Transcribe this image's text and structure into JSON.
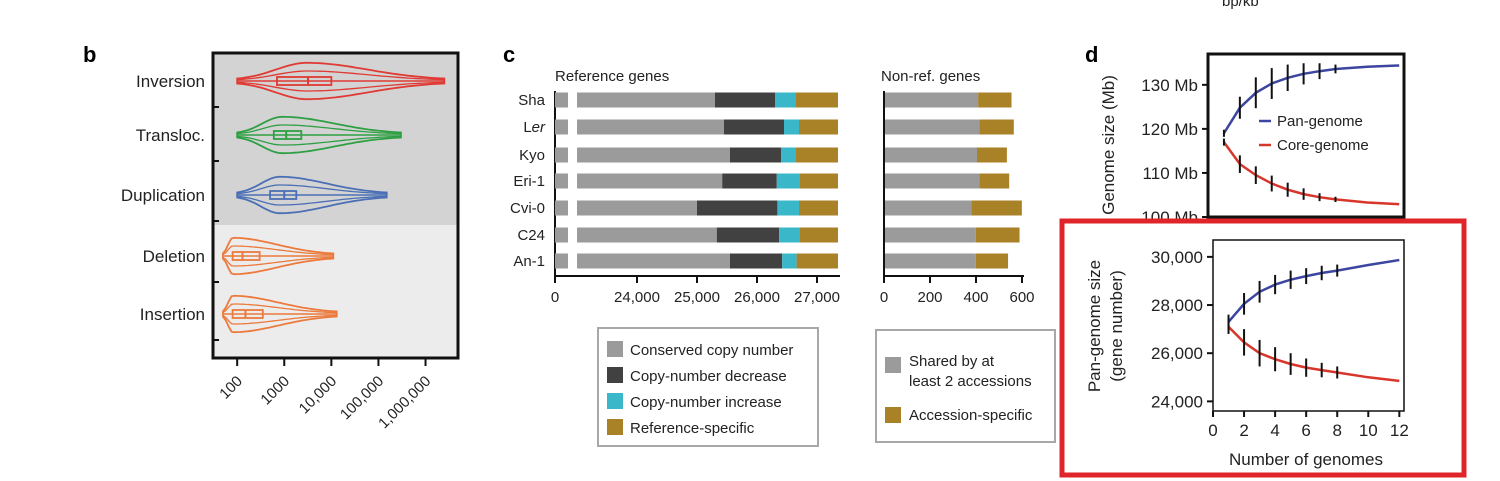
{
  "header": {
    "top_right_text": "bp/kb"
  },
  "panels": {
    "b": {
      "letter": "b"
    },
    "c": {
      "letter": "c"
    },
    "d": {
      "letter": "d"
    }
  },
  "chart_data": [
    {
      "id": "b",
      "type": "violin",
      "title": "",
      "xscale": "log",
      "xlim": [
        50,
        3000000
      ],
      "xticks": [
        {
          "value": 100,
          "label": "100"
        },
        {
          "value": 1000,
          "label": "1000"
        },
        {
          "value": 10000,
          "label": "10,000"
        },
        {
          "value": 100000,
          "label": "100,000"
        },
        {
          "value": 1000000,
          "label": "1,000,000"
        }
      ],
      "categories": [
        {
          "name": "Inversion",
          "color": "#e03a34",
          "group": "dark",
          "min": 100,
          "q1": 700,
          "median": 3200,
          "q3": 10000,
          "max": 2500000,
          "peak": 3000
        },
        {
          "name": "Transloc.",
          "color": "#2ea043",
          "group": "dark",
          "min": 100,
          "q1": 600,
          "median": 1100,
          "q3": 2300,
          "max": 300000,
          "peak": 900
        },
        {
          "name": "Duplication",
          "color": "#4a6fb5",
          "group": "dark",
          "min": 100,
          "q1": 500,
          "median": 1000,
          "q3": 1800,
          "max": 150000,
          "peak": 800
        },
        {
          "name": "Deletion",
          "color": "#ec7a3c",
          "group": "light",
          "min": 50,
          "q1": 80,
          "median": 130,
          "q3": 300,
          "max": 11000,
          "peak": 80
        },
        {
          "name": "Insertion",
          "color": "#ec7a3c",
          "group": "light",
          "min": 50,
          "q1": 80,
          "median": 150,
          "q3": 350,
          "max": 13000,
          "peak": 80
        }
      ]
    },
    {
      "id": "c-ref",
      "type": "stacked-bar-horizontal",
      "title": "Reference genes",
      "axis_break": true,
      "xlim": [
        23000,
        27500
      ],
      "xticks": [
        {
          "value": 0,
          "label": "0"
        },
        {
          "value": 24000,
          "label": "24,000"
        },
        {
          "value": 25000,
          "label": "25,000"
        },
        {
          "value": 26000,
          "label": "26,000"
        },
        {
          "value": 27000,
          "label": "27,000"
        }
      ],
      "categories": [
        "Sha",
        "Ler",
        "Kyo",
        "Eri-1",
        "Cvi-0",
        "C24",
        "An-1"
      ],
      "category_labels": [
        {
          "pre": "Sha",
          "italic": "",
          "post": ""
        },
        {
          "pre": "L",
          "italic": "er",
          "post": ""
        },
        {
          "pre": "Kyo",
          "italic": "",
          "post": ""
        },
        {
          "pre": "Eri-1",
          "italic": "",
          "post": ""
        },
        {
          "pre": "Cvi-0",
          "italic": "",
          "post": ""
        },
        {
          "pre": "C24",
          "italic": "",
          "post": ""
        },
        {
          "pre": "An-1",
          "italic": "",
          "post": ""
        }
      ],
      "series": [
        {
          "name": "Conserved copy number",
          "color": "#9b9b9b",
          "ends": [
            25300,
            25450,
            25550,
            25420,
            25000,
            25330,
            25550
          ]
        },
        {
          "name": "Copy-number decrease",
          "color": "#414141",
          "ends": [
            26300,
            26450,
            26400,
            26330,
            26340,
            26370,
            26420
          ]
        },
        {
          "name": "Copy-number increase",
          "color": "#3ab7c8",
          "ends": [
            26650,
            26700,
            26650,
            26710,
            26700,
            26710,
            26660
          ]
        },
        {
          "name": "Reference-specific",
          "color": "#a98127",
          "ends": [
            27350,
            27350,
            27350,
            27350,
            27350,
            27350,
            27350
          ]
        }
      ]
    },
    {
      "id": "c-nonref",
      "type": "stacked-bar-horizontal",
      "title": "Non-ref. genes",
      "xlim": [
        0,
        600
      ],
      "xticks": [
        {
          "value": 0,
          "label": "0"
        },
        {
          "value": 200,
          "label": "200"
        },
        {
          "value": 400,
          "label": "400"
        },
        {
          "value": 600,
          "label": "600"
        }
      ],
      "categories": [
        "Sha",
        "Ler",
        "Kyo",
        "Eri-1",
        "Cvi-0",
        "C24",
        "An-1"
      ],
      "series": [
        {
          "name": "Shared by at least 2 accessions",
          "color": "#9b9b9b",
          "values": [
            405,
            410,
            400,
            410,
            375,
            395,
            395
          ]
        },
        {
          "name": "Accession-specific",
          "color": "#a98127",
          "values": [
            145,
            150,
            130,
            130,
            220,
            190,
            140
          ]
        }
      ]
    },
    {
      "id": "d-top",
      "type": "line",
      "ylabel": "Genome size (Mb)",
      "xlim": [
        0,
        12.3
      ],
      "ylim": [
        100,
        137
      ],
      "yticks": [
        {
          "value": 100,
          "label": "100 Mb"
        },
        {
          "value": 110,
          "label": "110 Mb"
        },
        {
          "value": 120,
          "label": "120 Mb"
        },
        {
          "value": 130,
          "label": "130 Mb"
        }
      ],
      "series": [
        {
          "name": "Pan-genome",
          "color": "#3c46a0",
          "x": [
            1,
            2,
            3,
            4,
            5,
            6,
            7,
            8,
            10,
            12
          ],
          "y": [
            119.0,
            124.8,
            128.2,
            130.3,
            131.6,
            132.5,
            133.1,
            133.6,
            134.1,
            134.4
          ],
          "err": [
            0.8,
            2.5,
            3.5,
            3.5,
            3.0,
            2.4,
            1.8,
            1.0,
            0,
            0
          ]
        },
        {
          "name": "Core-genome",
          "color": "#d9362b",
          "x": [
            1,
            2,
            3,
            4,
            5,
            6,
            7,
            8,
            10,
            12
          ],
          "y": [
            117.0,
            112.0,
            109.5,
            107.6,
            106.2,
            105.2,
            104.5,
            104.0,
            103.3,
            102.9
          ],
          "err": [
            0.8,
            2.0,
            2.0,
            1.8,
            1.6,
            1.3,
            0.9,
            0.6,
            0,
            0
          ]
        }
      ],
      "error_bar_max_x": 8
    },
    {
      "id": "d-bottom",
      "type": "line",
      "xlabel": "Number of genomes",
      "ylabel": "Pan-genome size (gene number)",
      "ylabel_lines": [
        "Pan-genome size",
        "(gene number)"
      ],
      "xlim": [
        0,
        12.3
      ],
      "ylim": [
        23600,
        30700
      ],
      "xticks": [
        {
          "value": 0,
          "label": "0"
        },
        {
          "value": 2,
          "label": "2"
        },
        {
          "value": 4,
          "label": "4"
        },
        {
          "value": 6,
          "label": "6"
        },
        {
          "value": 8,
          "label": "8"
        },
        {
          "value": 10,
          "label": "10"
        },
        {
          "value": 12,
          "label": "12"
        }
      ],
      "yticks": [
        {
          "value": 24000,
          "label": "24,000"
        },
        {
          "value": 26000,
          "label": "26,000"
        },
        {
          "value": 28000,
          "label": "28,000"
        },
        {
          "value": 30000,
          "label": "30,000"
        }
      ],
      "series": [
        {
          "name": "Pan-genome",
          "color": "#3c46a0",
          "x": [
            1,
            2,
            3,
            4,
            5,
            6,
            7,
            8,
            10,
            12
          ],
          "y": [
            27300,
            28050,
            28550,
            28850,
            29050,
            29200,
            29330,
            29430,
            29660,
            29870
          ],
          "err": [
            300,
            450,
            450,
            400,
            380,
            330,
            300,
            250,
            0,
            0
          ]
        },
        {
          "name": "Core-genome",
          "color": "#d9362b",
          "x": [
            1,
            2,
            3,
            4,
            5,
            6,
            7,
            8,
            10,
            12
          ],
          "y": [
            27100,
            26450,
            26000,
            25750,
            25550,
            25400,
            25300,
            25200,
            25000,
            24850
          ],
          "err": [
            300,
            550,
            550,
            500,
            450,
            380,
            300,
            250,
            0,
            0
          ]
        }
      ],
      "error_bar_max_x": 8
    }
  ],
  "highlight": {
    "color": "#e0252a",
    "description": "Pan-genome size panel highlighted"
  }
}
